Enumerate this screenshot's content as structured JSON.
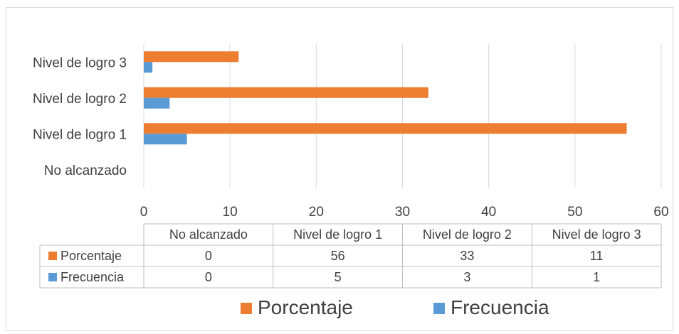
{
  "chart_data": {
    "type": "bar",
    "orientation": "horizontal",
    "categories": [
      "No alcanzado",
      "Nivel de logro 1",
      "Nivel de logro 2",
      "Nivel de logro 3"
    ],
    "series": [
      {
        "name": "Porcentaje",
        "values": [
          0,
          56,
          33,
          11
        ],
        "color": "#ED7D31"
      },
      {
        "name": "Frecuencia",
        "values": [
          0,
          5,
          3,
          1
        ],
        "color": "#5B9BD5"
      }
    ],
    "xlim": [
      0,
      60
    ],
    "xticks": [
      0,
      10,
      20,
      30,
      40,
      50,
      60
    ],
    "grid": true,
    "data_table": true,
    "legend_position": "bottom"
  }
}
